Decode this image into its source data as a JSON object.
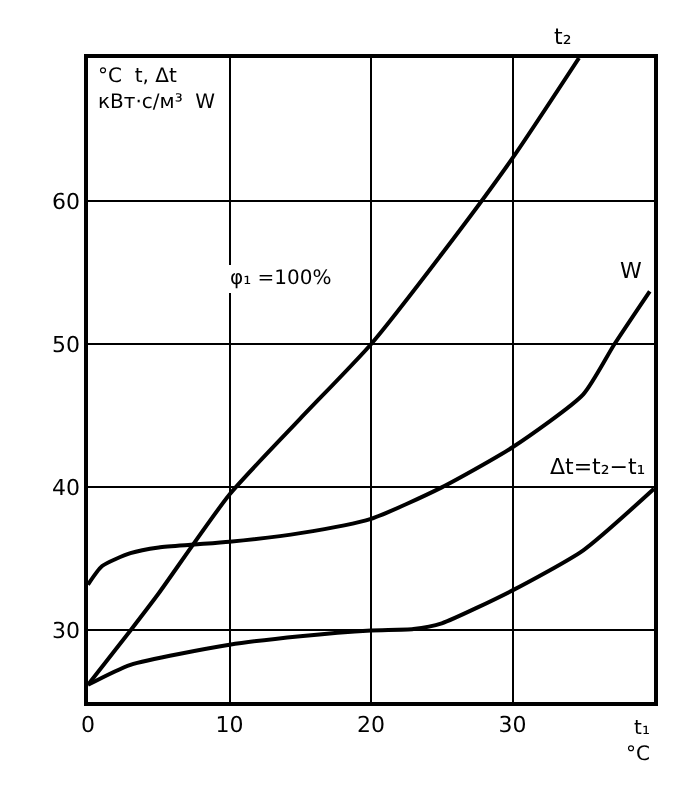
{
  "chart_data": {
    "type": "line",
    "xlabel": "t₁\n°C",
    "ylabel": "°C  t, Δt\nкВт·с/м³  W",
    "annotations": [
      "φ₁ =100%"
    ],
    "xlim": [
      0,
      40
    ],
    "xticks": [
      0,
      10,
      20,
      30
    ],
    "ylim": [
      25,
      70
    ],
    "yticks": [
      30,
      40,
      50,
      60
    ],
    "grid": true,
    "legend": false,
    "marker": "none",
    "line_style": "solid",
    "series": [
      {
        "name": "t₂",
        "color": "#000000",
        "x": [
          0,
          3,
          5,
          10,
          15,
          20,
          25,
          30,
          34.7
        ],
        "values": [
          26.2,
          30,
          32.6,
          39.5,
          44.8,
          50,
          56.3,
          63,
          70
        ]
      },
      {
        "name": "W",
        "color": "#000000",
        "x": [
          0,
          1,
          3,
          5,
          7.5,
          10,
          15,
          20,
          25,
          30,
          35,
          37.2,
          39.7
        ],
        "values": [
          33.2,
          34.5,
          35.4,
          35.8,
          36,
          36.2,
          36.8,
          37.8,
          40,
          42.8,
          46.5,
          50,
          53.7
        ]
      },
      {
        "name": "Δt=t₂−t₁",
        "color": "#000000",
        "x": [
          0,
          3,
          10,
          15,
          20,
          23,
          25,
          30,
          35,
          40
        ],
        "values": [
          26.2,
          27.6,
          29,
          29.6,
          30,
          30.1,
          30.5,
          32.8,
          35.6,
          39.9
        ]
      }
    ]
  }
}
